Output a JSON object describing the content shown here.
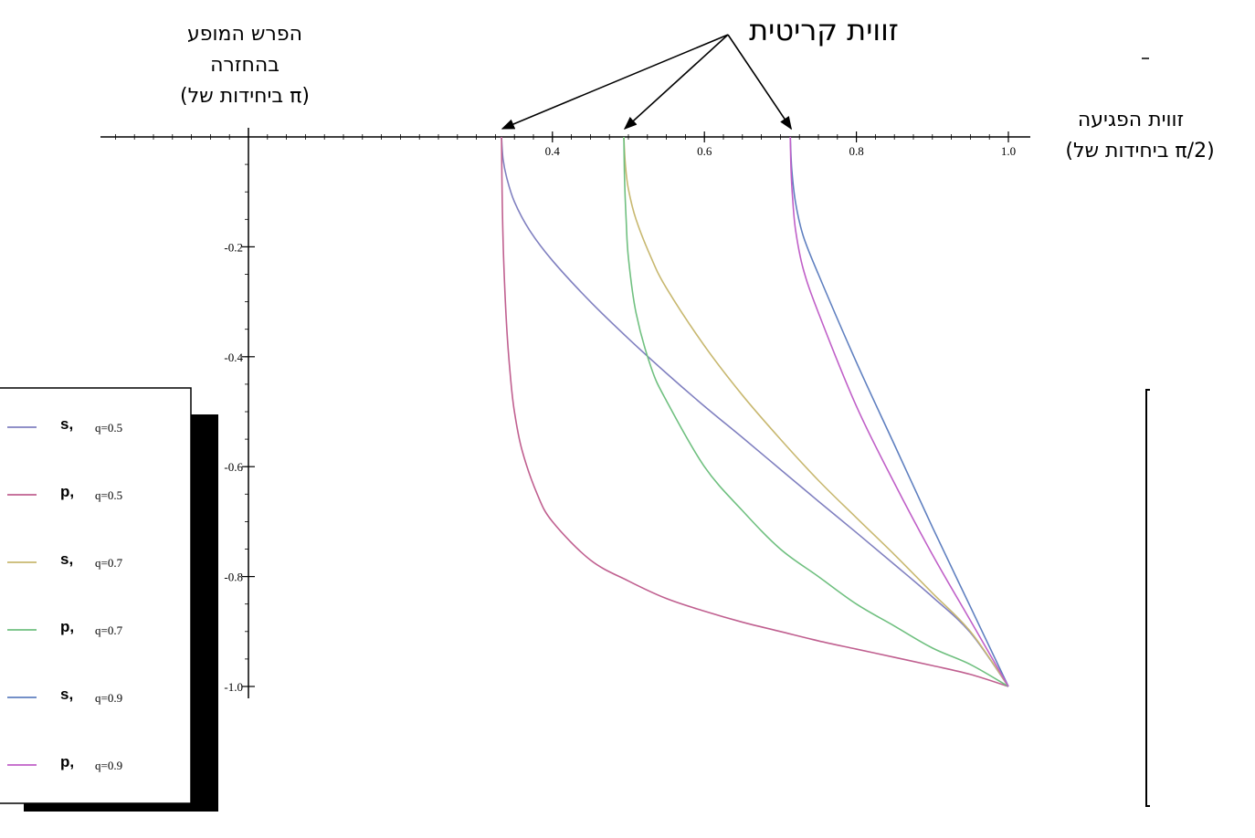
{
  "annotations": {
    "critical_angle": "זווית קריטית",
    "y_title_lines": [
      "הפרש המופע",
      "בהחזרה",
      "(ביחידות של π)"
    ],
    "x_title_lines": [
      "זווית הפגיעה",
      "(ביחידות של π/2)"
    ]
  },
  "chart_data": {
    "type": "line",
    "xlim": [
      -0.08,
      1.01
    ],
    "ylim": [
      -1.0,
      0
    ],
    "grid": false,
    "legend_position": "bottom-left",
    "x_ticks": [
      0.4,
      0.6,
      0.8,
      1.0
    ],
    "x_tick_labels": [
      "0.4",
      "0.6",
      "0.8",
      "1.0"
    ],
    "y_ticks": [
      -0.2,
      -0.4,
      -0.6,
      -0.8,
      -1.0
    ],
    "y_tick_labels": [
      "-0.2",
      "-0.4",
      "-0.6",
      "-0.8",
      "-1.0"
    ],
    "critical_angles": [
      0.333,
      0.494,
      0.713
    ],
    "series": [
      {
        "name": "s,",
        "q": "q=0.5",
        "color": "#8080c0",
        "x": [
          0.333,
          0.335,
          0.34,
          0.35,
          0.37,
          0.4,
          0.45,
          0.5,
          0.55,
          0.6,
          0.65,
          0.7,
          0.75,
          0.8,
          0.85,
          0.9,
          0.95,
          1.0
        ],
        "y": [
          0,
          -0.04,
          -0.075,
          -0.118,
          -0.17,
          -0.225,
          -0.3,
          -0.367,
          -0.43,
          -0.49,
          -0.547,
          -0.605,
          -0.663,
          -0.72,
          -0.778,
          -0.837,
          -0.902,
          -1.0
        ]
      },
      {
        "name": "p,",
        "q": "q=0.5",
        "color": "#c06090",
        "x": [
          0.333,
          0.334,
          0.336,
          0.34,
          0.345,
          0.35,
          0.36,
          0.38,
          0.4,
          0.45,
          0.5,
          0.55,
          0.6,
          0.65,
          0.7,
          0.75,
          0.8,
          0.85,
          0.9,
          0.95,
          1.0
        ],
        "y": [
          0,
          -0.12,
          -0.23,
          -0.35,
          -0.44,
          -0.5,
          -0.57,
          -0.65,
          -0.7,
          -0.77,
          -0.808,
          -0.84,
          -0.863,
          -0.883,
          -0.9,
          -0.917,
          -0.932,
          -0.947,
          -0.962,
          -0.978,
          -1.0
        ]
      },
      {
        "name": "s,",
        "q": "q=0.7",
        "color": "#c8b870",
        "x": [
          0.494,
          0.496,
          0.5,
          0.51,
          0.53,
          0.55,
          0.6,
          0.65,
          0.7,
          0.75,
          0.8,
          0.85,
          0.9,
          0.95,
          1.0
        ],
        "y": [
          0,
          -0.05,
          -0.095,
          -0.15,
          -0.22,
          -0.275,
          -0.38,
          -0.47,
          -0.55,
          -0.625,
          -0.693,
          -0.76,
          -0.83,
          -0.9,
          -1.0
        ]
      },
      {
        "name": "p,",
        "q": "q=0.7",
        "color": "#70c080",
        "x": [
          0.494,
          0.495,
          0.497,
          0.5,
          0.51,
          0.53,
          0.55,
          0.6,
          0.65,
          0.7,
          0.75,
          0.8,
          0.85,
          0.9,
          0.95,
          1.0
        ],
        "y": [
          0,
          -0.08,
          -0.15,
          -0.22,
          -0.32,
          -0.42,
          -0.48,
          -0.6,
          -0.68,
          -0.75,
          -0.8,
          -0.85,
          -0.89,
          -0.93,
          -0.96,
          -1.0
        ]
      },
      {
        "name": "s,",
        "q": "q=0.9",
        "color": "#6080c0",
        "x": [
          0.713,
          0.715,
          0.72,
          0.73,
          0.75,
          0.8,
          0.85,
          0.9,
          0.95,
          1.0
        ],
        "y": [
          0,
          -0.06,
          -0.12,
          -0.18,
          -0.25,
          -0.41,
          -0.56,
          -0.71,
          -0.855,
          -1.0
        ]
      },
      {
        "name": "p,",
        "q": "q=0.9",
        "color": "#c060c8",
        "x": [
          0.713,
          0.714,
          0.716,
          0.72,
          0.73,
          0.75,
          0.8,
          0.85,
          0.9,
          0.95,
          1.0
        ],
        "y": [
          0,
          -0.06,
          -0.11,
          -0.17,
          -0.24,
          -0.32,
          -0.49,
          -0.63,
          -0.76,
          -0.88,
          -1.0
        ]
      }
    ]
  }
}
